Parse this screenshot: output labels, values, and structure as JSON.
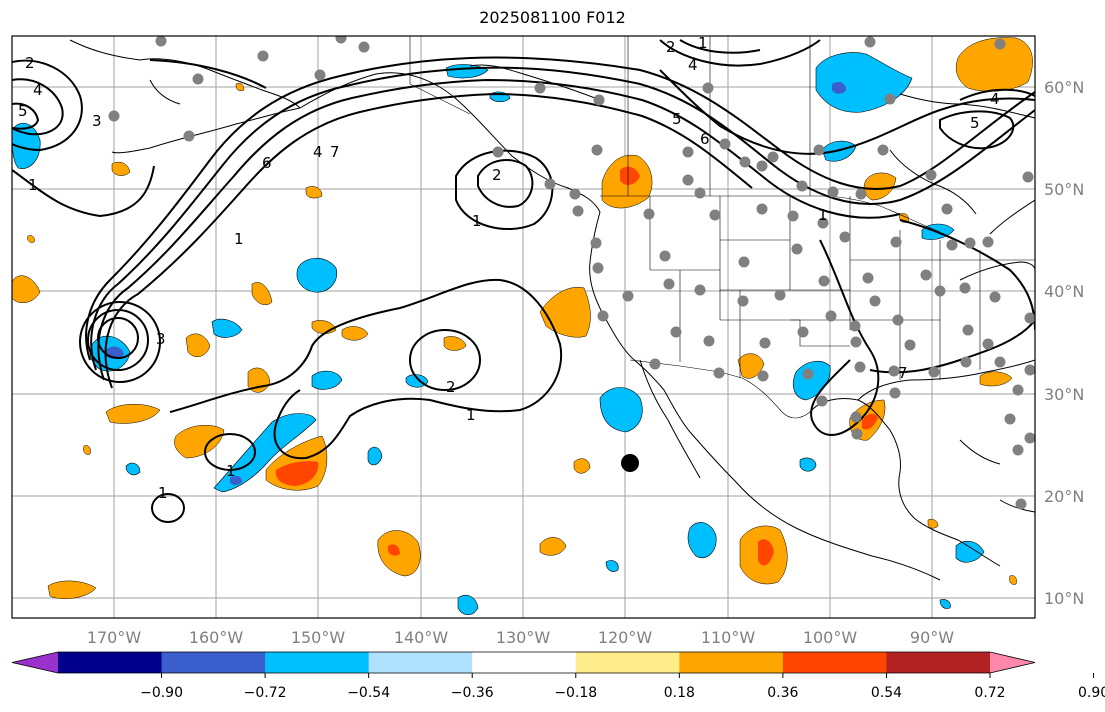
{
  "title": "2025081100 F012",
  "lon_labels": [
    "170°W",
    "160°W",
    "150°W",
    "140°W",
    "130°W",
    "120°W",
    "110°W",
    "100°W",
    "90°W"
  ],
  "lat_labels": [
    "60°N",
    "50°N",
    "40°N",
    "30°N",
    "20°N",
    "10°N"
  ],
  "colorbar": {
    "colors": [
      "#9932cc",
      "#00008b",
      "#3a5fcd",
      "#00bfff",
      "#b0e2ff",
      "#ffffff",
      "#ffec8b",
      "#ffa500",
      "#ff4500",
      "#b22222",
      "#ff88aa"
    ],
    "tick_labels": [
      "−0.90",
      "−0.72",
      "−0.54",
      "−0.36",
      "−0.18",
      "0.18",
      "0.36",
      "0.54",
      "0.72",
      "0.90"
    ]
  },
  "contour_labels": [
    "2",
    "4",
    "5",
    "3",
    "1",
    "6",
    "4",
    "7",
    "1",
    "2",
    "1",
    "2",
    "1",
    "1",
    "1",
    "3",
    "4",
    "6",
    "5",
    "4",
    "5",
    "1",
    "7",
    "2",
    "1"
  ]
}
